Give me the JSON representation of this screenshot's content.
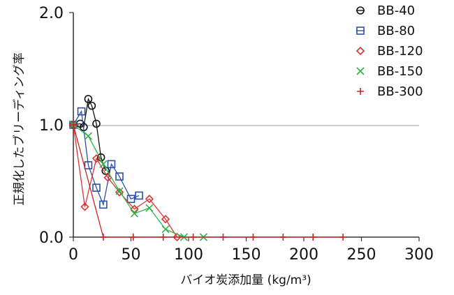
{
  "chart_data": {
    "type": "line",
    "title": "",
    "xlabel": "バイオ炭添加量 (kg/m³)",
    "ylabel": "正規化したブリーディング率",
    "xlim": [
      0,
      300
    ],
    "ylim": [
      0,
      2
    ],
    "x_ticks": [
      "0",
      "50",
      "100",
      "150",
      "200",
      "250",
      "300"
    ],
    "y_ticks": [
      "0.0",
      "1.0",
      "2.0"
    ],
    "legend_position": "top-right",
    "series": [
      {
        "name": "BB-40",
        "marker": "circle",
        "color": "#111111",
        "x": [
          0,
          6,
          9,
          13,
          16,
          20,
          24,
          28
        ],
        "y": [
          1.0,
          1.01,
          0.98,
          1.23,
          1.17,
          1.01,
          0.71,
          0.59
        ]
      },
      {
        "name": "BB-80",
        "marker": "square",
        "color": "#2b4fa8",
        "x": [
          0,
          7,
          13,
          20,
          26,
          33,
          40,
          50,
          57
        ],
        "y": [
          1.0,
          1.12,
          0.64,
          0.44,
          0.29,
          0.65,
          0.54,
          0.34,
          0.37
        ]
      },
      {
        "name": "BB-120",
        "marker": "diamond",
        "color": "#e03030",
        "x": [
          0,
          10,
          20,
          30,
          40,
          53,
          66,
          80,
          90
        ],
        "y": [
          1.0,
          0.27,
          0.7,
          0.53,
          0.4,
          0.25,
          0.34,
          0.16,
          0.0
        ]
      },
      {
        "name": "BB-150",
        "marker": "x",
        "color": "#2db34a",
        "x": [
          0,
          13,
          26,
          40,
          53,
          66,
          80,
          96,
          113
        ],
        "y": [
          1.0,
          0.9,
          0.65,
          0.41,
          0.21,
          0.26,
          0.07,
          0.0,
          0.0
        ]
      },
      {
        "name": "BB-300",
        "marker": "plus",
        "color": "#cc2222",
        "x": [
          0,
          26,
          52,
          78,
          104,
          130,
          156,
          182,
          208,
          234
        ],
        "y": [
          1.0,
          0.0,
          0.0,
          0.0,
          0.0,
          0.0,
          0.0,
          0.0,
          0.0,
          0.0
        ]
      }
    ]
  }
}
